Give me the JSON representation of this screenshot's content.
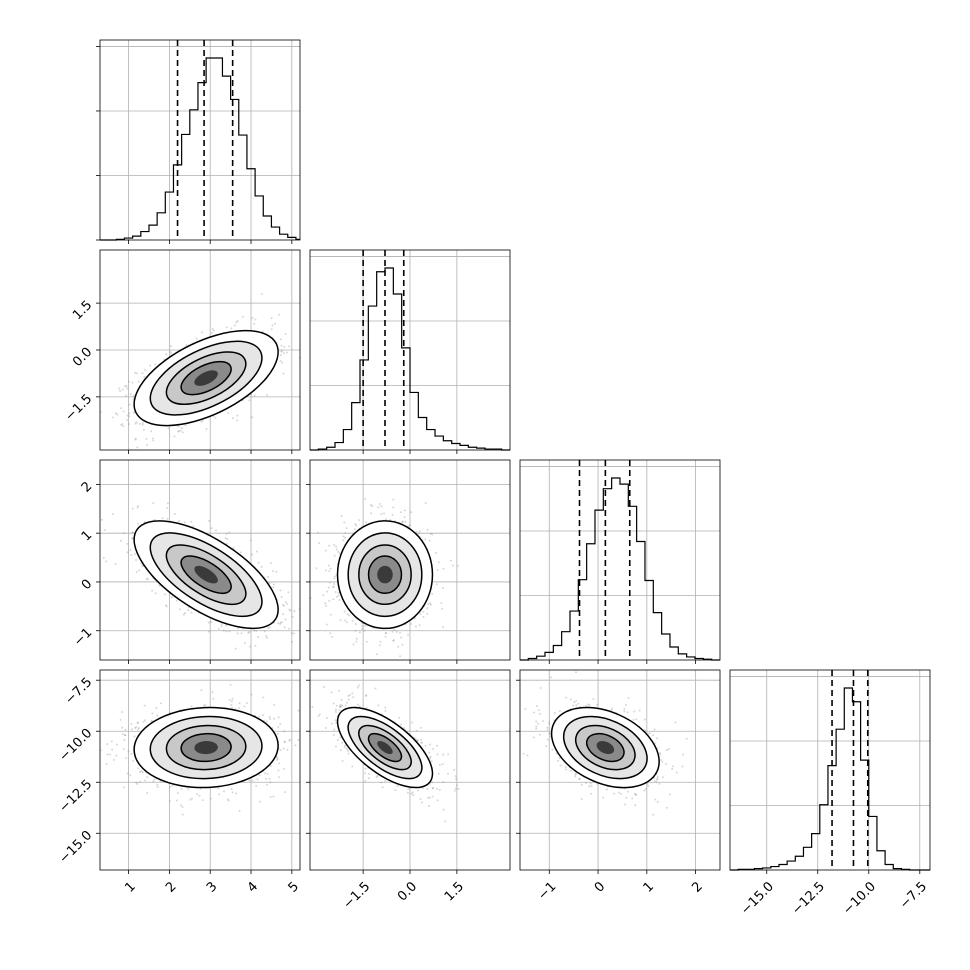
{
  "chart_data": {
    "type": "corner",
    "title": "",
    "grid": true,
    "parameters": [
      {
        "name": "",
        "range": [
          0.3,
          5.2
        ],
        "ticks": [
          {
            "v": 1,
            "label": "1"
          },
          {
            "v": 2,
            "label": "2"
          },
          {
            "v": 3,
            "label": "3"
          },
          {
            "v": 4,
            "label": "4"
          },
          {
            "v": 5,
            "label": "5"
          }
        ],
        "quantiles": [
          2.2,
          2.85,
          3.55
        ],
        "hist": {
          "edges_start": 0.3,
          "edges_step": 0.2,
          "counts": [
            0,
            0,
            1,
            3,
            6,
            13,
            23,
            42,
            74,
            116,
            163,
            201,
            243,
            281,
            281,
            253,
            217,
            162,
            110,
            68,
            37,
            20,
            9,
            4,
            1
          ]
        }
      },
      {
        "name": "",
        "range": [
          -3.2,
          3.2
        ],
        "ticks": [
          {
            "v": -1.5,
            "label": "−1.5"
          },
          {
            "v": 0.0,
            "label": "0.0"
          },
          {
            "v": 1.5,
            "label": "1.5"
          }
        ],
        "quantiles": [
          -1.5,
          -0.8,
          -0.2
        ],
        "hist": {
          "edges_start": -3.2,
          "edges_step": 0.2667,
          "counts": [
            0,
            1,
            3,
            8,
            22,
            51,
            97,
            155,
            192,
            196,
            168,
            110,
            62,
            35,
            22,
            15,
            10,
            7,
            5,
            3,
            2,
            1,
            1,
            0
          ]
        }
      },
      {
        "name": "",
        "range": [
          -1.6,
          2.5
        ],
        "ticks": [
          {
            "v": -1,
            "label": "−1"
          },
          {
            "v": 0,
            "label": "0"
          },
          {
            "v": 1,
            "label": "1"
          },
          {
            "v": 2,
            "label": "2"
          }
        ],
        "quantiles": [
          -0.38,
          0.15,
          0.65
        ],
        "hist": {
          "edges_start": -1.6,
          "edges_step": 0.1708,
          "counts": [
            0,
            2,
            5,
            10,
            19,
            37,
            64,
            105,
            152,
            196,
            224,
            238,
            230,
            201,
            155,
            104,
            62,
            34,
            17,
            8,
            4,
            2,
            1,
            0
          ]
        }
      },
      {
        "name": "",
        "range": [
          -16.8,
          -7.0
        ],
        "ticks": [
          {
            "v": -15.0,
            "label": "−15.0"
          },
          {
            "v": -12.5,
            "label": "−12.5"
          },
          {
            "v": -10.0,
            "label": "−10.0"
          },
          {
            "v": -7.5,
            "label": "−7.5"
          }
        ],
        "yticks": [
          {
            "v": -7.5,
            "label": "−7.5"
          },
          {
            "v": -10.0,
            "label": "−10.0"
          },
          {
            "v": -12.5,
            "label": "−12.5"
          },
          {
            "v": -15.0,
            "label": "−15.0"
          }
        ],
        "quantiles": [
          -11.8,
          -10.75,
          -10.05
        ],
        "hist": {
          "edges_start": -16.8,
          "edges_step": 0.4,
          "counts": [
            0,
            1,
            1,
            2,
            3,
            5,
            8,
            13,
            20,
            33,
            53,
            95,
            152,
            205,
            265,
            245,
            160,
            78,
            28,
            8,
            2,
            1,
            0,
            0,
            0
          ]
        }
      }
    ],
    "pairs": [
      {
        "row": 1,
        "col": 0,
        "mean_x": 2.9,
        "mean_y": -0.9,
        "sd_x": 0.72,
        "sd_y": 0.62,
        "rho": 0.55
      },
      {
        "row": 2,
        "col": 0,
        "mean_x": 2.9,
        "mean_y": 0.15,
        "sd_x": 0.72,
        "sd_y": 0.45,
        "rho": -0.65
      },
      {
        "row": 2,
        "col": 1,
        "mean_x": -0.8,
        "mean_y": 0.15,
        "sd_x": 0.62,
        "sd_y": 0.45,
        "rho": 0.0
      },
      {
        "row": 3,
        "col": 0,
        "mean_x": 2.9,
        "mean_y": -10.8,
        "sd_x": 0.72,
        "sd_y": 0.8,
        "rho": 0.05
      },
      {
        "row": 3,
        "col": 1,
        "mean_x": -0.8,
        "mean_y": -10.8,
        "sd_x": 0.62,
        "sd_y": 0.8,
        "rho": -0.65
      },
      {
        "row": 3,
        "col": 2,
        "mean_x": 0.15,
        "mean_y": -10.8,
        "sd_x": 0.45,
        "sd_y": 0.8,
        "rho": -0.35
      }
    ]
  }
}
